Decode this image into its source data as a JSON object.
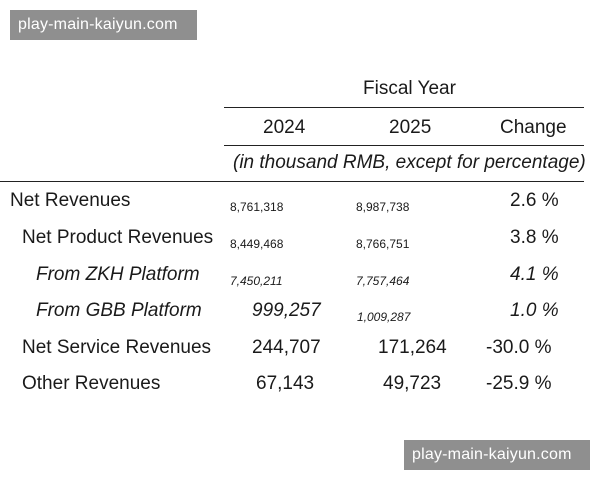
{
  "watermark": {
    "text": "play-main-kaiyun.com"
  },
  "table": {
    "group_header": "Fiscal Year",
    "columns": [
      "2024",
      "2025",
      "Change"
    ],
    "unit_note": "(in thousand RMB, except for percentage)",
    "rows": [
      {
        "label": "Net Revenues",
        "v2024": "8,761,318",
        "v2025": "8,987,738",
        "change": "2.6 %"
      },
      {
        "label": "Net Product Revenues",
        "v2024": "8,449,468",
        "v2025": "8,766,751",
        "change": "3.8 %"
      },
      {
        "label": "From ZKH Platform",
        "v2024": "7,450,211",
        "v2025": "7,757,464",
        "change": "4.1 %"
      },
      {
        "label": "From GBB Platform",
        "v2024": "999,257",
        "v2025": "1,009,287",
        "change": "1.0 %"
      },
      {
        "label": "Net Service Revenues",
        "v2024": "244,707",
        "v2025": "171,264",
        "change": "-30.0 %"
      },
      {
        "label": "Other Revenues",
        "v2024": "67,143",
        "v2025": "49,723",
        "change": "-25.9 %"
      }
    ]
  }
}
